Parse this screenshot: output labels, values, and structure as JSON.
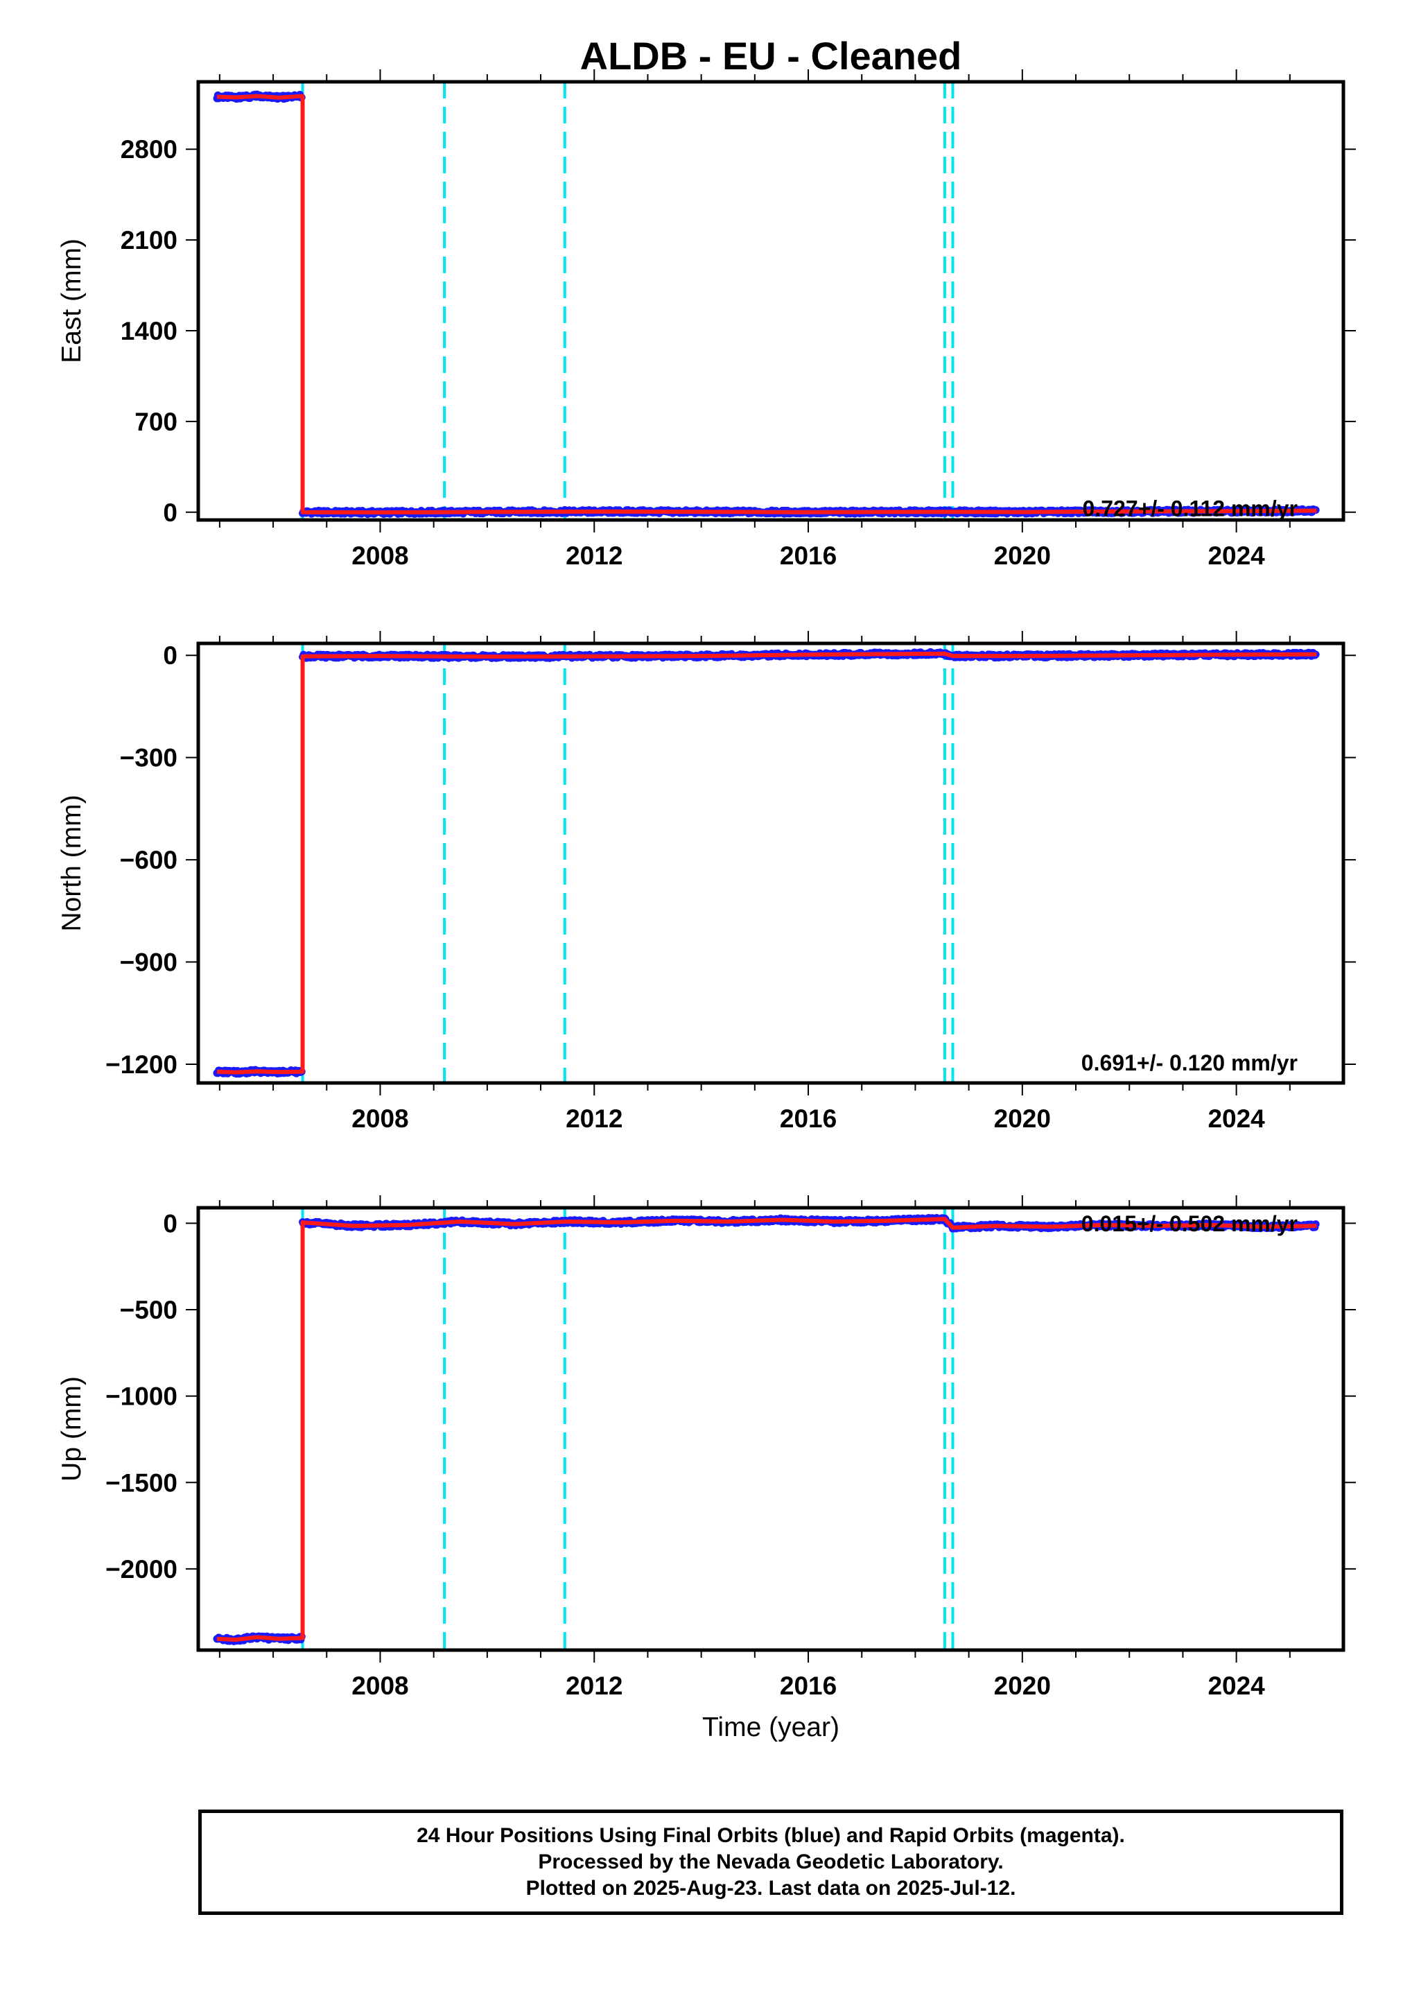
{
  "title": "ALDB  - EU - Cleaned",
  "footer": {
    "line1": "24 Hour Positions Using Final Orbits (blue) and Rapid Orbits (magenta).",
    "line2": "Processed by the Nevada Geodetic Laboratory.",
    "line3": "Plotted on 2025-Aug-23. Last data on 2025-Jul-12."
  },
  "colors": {
    "final_orbits": "#1a1aff",
    "rapid_orbits": "#ff00ff",
    "model": "#ff1a1a",
    "events": "#00e5ee"
  },
  "chart_data": [
    {
      "type": "line",
      "component": "East",
      "ylabel": "East (mm)",
      "xlabel": "",
      "x_ticks": [
        2008,
        2012,
        2016,
        2020,
        2024
      ],
      "y_ticks": [
        0,
        700,
        1400,
        2100,
        2800
      ],
      "ylim": [
        -60,
        3320
      ],
      "xlim": [
        2004.6,
        2026.0
      ],
      "rate": "0.727+/- 0.112 mm/yr",
      "event_years": [
        2006.55,
        2009.2,
        2011.45,
        2018.55,
        2018.7
      ],
      "series": [
        {
          "x": [
            2004.95,
            2005.3,
            2005.7,
            2006.1,
            2006.55
          ],
          "y": [
            3205,
            3200,
            3210,
            3198,
            3210
          ]
        },
        {
          "x": [
            2006.55,
            2008.0,
            2010.0,
            2012.0,
            2014.0,
            2016.0,
            2018.55,
            2020.0,
            2022.0,
            2024.0,
            2025.5
          ],
          "y": [
            0,
            -2,
            2,
            5,
            3,
            0,
            3,
            1,
            6,
            8,
            12
          ]
        }
      ]
    },
    {
      "type": "line",
      "component": "North",
      "ylabel": "North (mm)",
      "xlabel": "",
      "x_ticks": [
        2008,
        2012,
        2016,
        2020,
        2024
      ],
      "y_ticks": [
        0,
        -300,
        -600,
        -900,
        -1200
      ],
      "ylim": [
        -1255,
        35
      ],
      "xlim": [
        2004.6,
        2026.0
      ],
      "rate": "0.691+/- 0.120 mm/yr",
      "event_years": [
        2006.55,
        2009.2,
        2011.45,
        2018.55,
        2018.7
      ],
      "series": [
        {
          "x": [
            2004.95,
            2005.3,
            2005.7,
            2006.1,
            2006.55
          ],
          "y": [
            -1222,
            -1224,
            -1221,
            -1223,
            -1222
          ]
        },
        {
          "x": [
            2006.55,
            2008.0,
            2010.0,
            2012.0,
            2014.0,
            2016.0,
            2018.55,
            2018.7,
            2020.0,
            2022.0,
            2024.0,
            2025.5
          ],
          "y": [
            -3,
            -2,
            -4,
            -3,
            -2,
            2,
            5,
            -2,
            -2,
            0,
            2,
            3
          ]
        }
      ]
    },
    {
      "type": "line",
      "component": "Up",
      "ylabel": "Up (mm)",
      "xlabel": "Time (year)",
      "x_ticks": [
        2008,
        2012,
        2016,
        2020,
        2024
      ],
      "y_ticks": [
        0,
        -500,
        -1000,
        -1500,
        -2000
      ],
      "ylim": [
        -2470,
        90
      ],
      "xlim": [
        2004.6,
        2026.0
      ],
      "rate": "0.015+/- 0.502 mm/yr",
      "event_years": [
        2006.55,
        2009.2,
        2011.45,
        2018.55,
        2018.7
      ],
      "series": [
        {
          "x": [
            2004.95,
            2005.3,
            2005.7,
            2006.1,
            2006.55
          ],
          "y": [
            -2405,
            -2410,
            -2395,
            -2405,
            -2400
          ]
        },
        {
          "x": [
            2006.55,
            2007.5,
            2008.5,
            2009.5,
            2010.5,
            2011.5,
            2012.5,
            2013.5,
            2014.5,
            2015.5,
            2016.5,
            2017.5,
            2018.55,
            2018.7,
            2019.5,
            2020.5,
            2021.5,
            2022.5,
            2023.5,
            2024.5,
            2025.5
          ],
          "y": [
            5,
            -15,
            -10,
            10,
            -5,
            10,
            5,
            15,
            10,
            20,
            10,
            15,
            25,
            -25,
            -15,
            -20,
            -10,
            -15,
            -10,
            -20,
            -15
          ]
        }
      ]
    }
  ]
}
